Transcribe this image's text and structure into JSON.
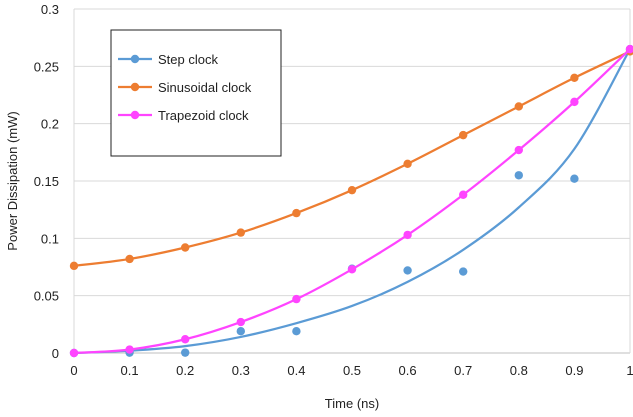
{
  "chart_data": {
    "type": "line",
    "xlabel": "Time (ns)",
    "ylabel": "Power Dissipation (mW)",
    "xlim": [
      0,
      1
    ],
    "ylim": [
      0,
      0.3
    ],
    "x_ticks": [
      0,
      0.1,
      0.2,
      0.3,
      0.4,
      0.5,
      0.6,
      0.7,
      0.8,
      0.9,
      1
    ],
    "x_tick_labels": [
      "0",
      "0.1",
      "0.2",
      "0.3",
      "0.4",
      "0.5",
      "0.6",
      "0.7",
      "0.8",
      "0.9",
      "1"
    ],
    "y_ticks": [
      0,
      0.05,
      0.1,
      0.15,
      0.2,
      0.25,
      0.3
    ],
    "y_tick_labels": [
      "0",
      "0.05",
      "0.1",
      "0.15",
      "0.2",
      "0.25",
      "0.3"
    ],
    "grid": "horizontal",
    "legend_position": "top-left",
    "series": [
      {
        "name": "Step clock",
        "color": "#5b9bd5",
        "render": "points-with-fit-curve",
        "x": [
          0,
          0.1,
          0.2,
          0.3,
          0.4,
          0.5,
          0.6,
          0.7,
          0.8,
          0.9,
          1
        ],
        "values": [
          0,
          0.0003,
          0.0003,
          0.019,
          0.019,
          0.0735,
          0.072,
          0.071,
          0.155,
          0.152,
          0.265
        ],
        "curve_x": [
          0,
          0.1,
          0.2,
          0.3,
          0.4,
          0.5,
          0.6,
          0.7,
          0.8,
          0.9,
          1
        ],
        "curve_values": [
          0,
          0.002,
          0.006,
          0.014,
          0.026,
          0.041,
          0.062,
          0.09,
          0.127,
          0.178,
          0.265
        ]
      },
      {
        "name": "Sinusoidal clock",
        "color": "#ed7d31",
        "render": "line-with-markers",
        "x": [
          0,
          0.1,
          0.2,
          0.3,
          0.4,
          0.5,
          0.6,
          0.7,
          0.8,
          0.9,
          1
        ],
        "values": [
          0.076,
          0.082,
          0.092,
          0.105,
          0.122,
          0.142,
          0.165,
          0.19,
          0.215,
          0.24,
          0.263
        ]
      },
      {
        "name": "Trapezoid clock",
        "color": "#ff44ff",
        "render": "line-with-markers",
        "x": [
          0,
          0.1,
          0.2,
          0.3,
          0.4,
          0.5,
          0.6,
          0.7,
          0.8,
          0.9,
          1
        ],
        "values": [
          0,
          0.003,
          0.012,
          0.027,
          0.047,
          0.073,
          0.103,
          0.138,
          0.177,
          0.219,
          0.265
        ]
      }
    ]
  }
}
